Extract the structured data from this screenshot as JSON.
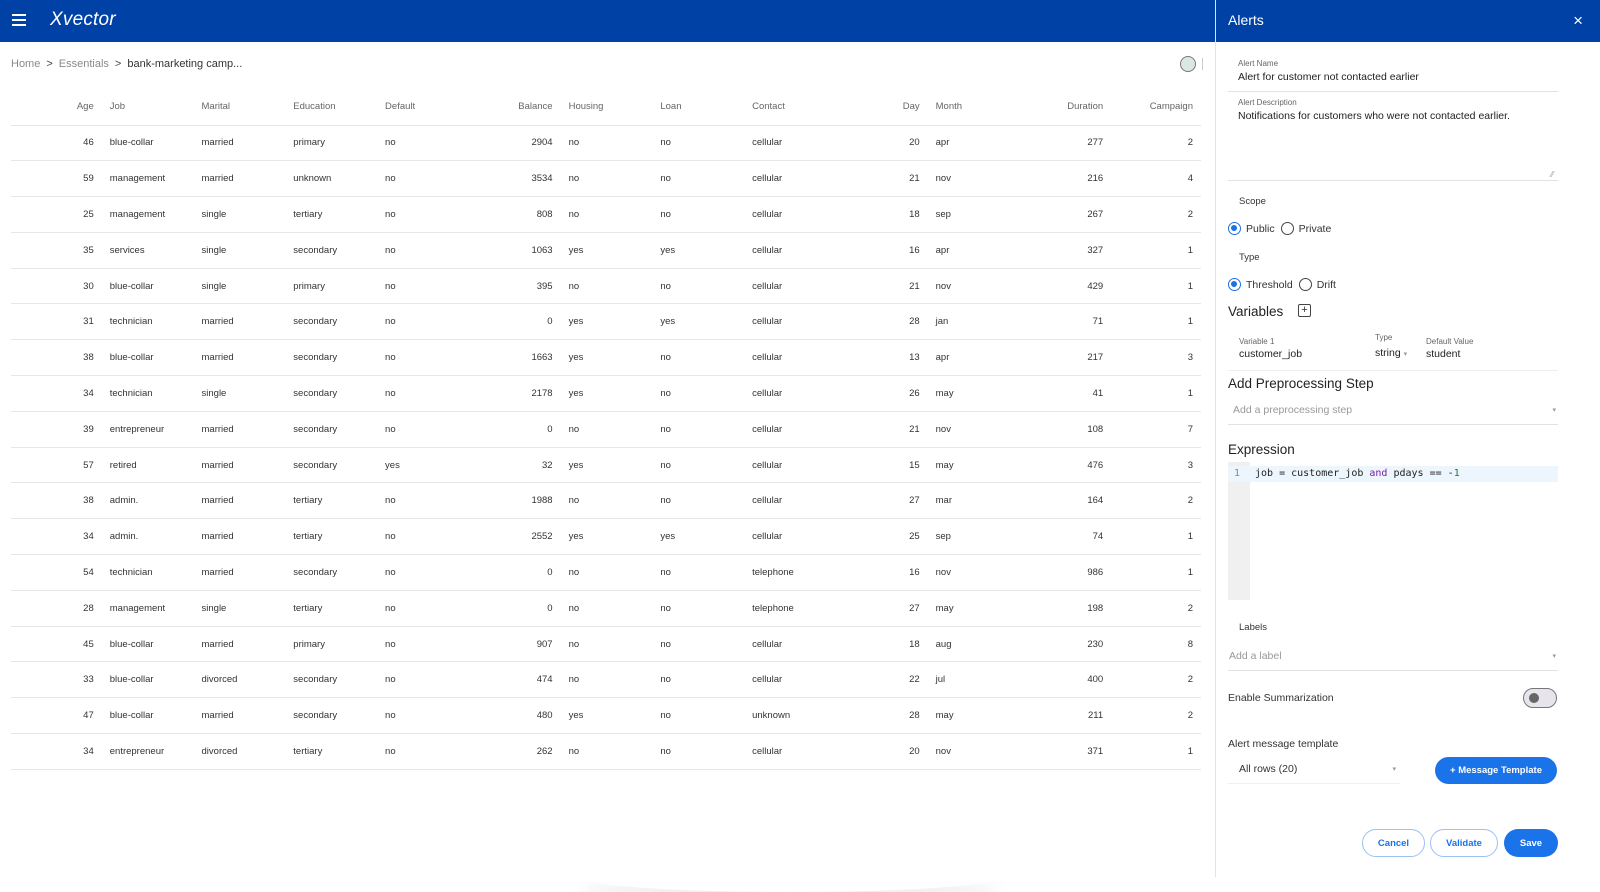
{
  "app": {
    "title": "Xvector"
  },
  "breadcrumb": {
    "items": [
      "Home",
      "Essentials",
      "bank-marketing camp..."
    ],
    "separator": ">"
  },
  "table": {
    "columns": [
      "Age",
      "Job",
      "Marital",
      "Education",
      "Default",
      "Balance",
      "Housing",
      "Loan",
      "Contact",
      "Day",
      "Month",
      "Duration",
      "Campaign"
    ],
    "rows": [
      [
        "46",
        "blue-collar",
        "married",
        "primary",
        "no",
        "2904",
        "no",
        "no",
        "cellular",
        "20",
        "apr",
        "277",
        "2"
      ],
      [
        "59",
        "management",
        "married",
        "unknown",
        "no",
        "3534",
        "no",
        "no",
        "cellular",
        "21",
        "nov",
        "216",
        "4"
      ],
      [
        "25",
        "management",
        "single",
        "tertiary",
        "no",
        "808",
        "no",
        "no",
        "cellular",
        "18",
        "sep",
        "267",
        "2"
      ],
      [
        "35",
        "services",
        "single",
        "secondary",
        "no",
        "1063",
        "yes",
        "yes",
        "cellular",
        "16",
        "apr",
        "327",
        "1"
      ],
      [
        "30",
        "blue-collar",
        "single",
        "primary",
        "no",
        "395",
        "no",
        "no",
        "cellular",
        "21",
        "nov",
        "429",
        "1"
      ],
      [
        "31",
        "technician",
        "married",
        "secondary",
        "no",
        "0",
        "yes",
        "yes",
        "cellular",
        "28",
        "jan",
        "71",
        "1"
      ],
      [
        "38",
        "blue-collar",
        "married",
        "secondary",
        "no",
        "1663",
        "yes",
        "no",
        "cellular",
        "13",
        "apr",
        "217",
        "3"
      ],
      [
        "34",
        "technician",
        "single",
        "secondary",
        "no",
        "2178",
        "yes",
        "no",
        "cellular",
        "26",
        "may",
        "41",
        "1"
      ],
      [
        "39",
        "entrepreneur",
        "married",
        "secondary",
        "no",
        "0",
        "no",
        "no",
        "cellular",
        "21",
        "nov",
        "108",
        "7"
      ],
      [
        "57",
        "retired",
        "married",
        "secondary",
        "yes",
        "32",
        "yes",
        "no",
        "cellular",
        "15",
        "may",
        "476",
        "3"
      ],
      [
        "38",
        "admin.",
        "married",
        "tertiary",
        "no",
        "1988",
        "no",
        "no",
        "cellular",
        "27",
        "mar",
        "164",
        "2"
      ],
      [
        "34",
        "admin.",
        "married",
        "tertiary",
        "no",
        "2552",
        "yes",
        "yes",
        "cellular",
        "25",
        "sep",
        "74",
        "1"
      ],
      [
        "54",
        "technician",
        "married",
        "secondary",
        "no",
        "0",
        "no",
        "no",
        "telephone",
        "16",
        "nov",
        "986",
        "1"
      ],
      [
        "28",
        "management",
        "single",
        "tertiary",
        "no",
        "0",
        "no",
        "no",
        "telephone",
        "27",
        "may",
        "198",
        "2"
      ],
      [
        "45",
        "blue-collar",
        "married",
        "primary",
        "no",
        "907",
        "no",
        "no",
        "cellular",
        "18",
        "aug",
        "230",
        "8"
      ],
      [
        "33",
        "blue-collar",
        "divorced",
        "secondary",
        "no",
        "474",
        "no",
        "no",
        "cellular",
        "22",
        "jul",
        "400",
        "2"
      ],
      [
        "47",
        "blue-collar",
        "married",
        "secondary",
        "no",
        "480",
        "yes",
        "no",
        "unknown",
        "28",
        "may",
        "211",
        "2"
      ],
      [
        "34",
        "entrepreneur",
        "divorced",
        "tertiary",
        "no",
        "262",
        "no",
        "no",
        "cellular",
        "20",
        "nov",
        "371",
        "1"
      ]
    ]
  },
  "panel": {
    "title": "Alerts",
    "close_icon": "×",
    "alert_name": {
      "label": "Alert Name",
      "value": "Alert for customer not contacted earlier"
    },
    "alert_description": {
      "label": "Alert Description",
      "value": "Notifications for customers who were not contacted earlier."
    },
    "scope": {
      "label": "Scope",
      "options": [
        "Public",
        "Private"
      ],
      "selected": "Public"
    },
    "type": {
      "label": "Type",
      "options": [
        "Threshold",
        "Drift"
      ],
      "selected": "Threshold"
    },
    "variables": {
      "title": "Variables",
      "add_icon": "+",
      "items": [
        {
          "name_label": "Variable 1",
          "name": "customer_job",
          "type_label": "Type",
          "type": "string",
          "default_label": "Default Value",
          "default": "student"
        }
      ]
    },
    "preprocessing": {
      "title": "Add Preprocessing Step",
      "placeholder": "Add a preprocessing step"
    },
    "expression": {
      "title": "Expression",
      "line_number": "1",
      "code_parts": {
        "a": "job = customer_job ",
        "kw": "and",
        "b": " pdays == -",
        "num": "1"
      }
    },
    "labels": {
      "label": "Labels",
      "placeholder": "Add a label"
    },
    "summarization": {
      "label": "Enable Summarization",
      "enabled": false
    },
    "message_template": {
      "label": "Alert message template",
      "selected": "All rows (20)",
      "add_button": "+ Message Template"
    },
    "buttons": {
      "cancel": "Cancel",
      "validate": "Validate",
      "save": "Save"
    },
    "dropdown_arrow": "▾"
  },
  "colors": {
    "header": "#0041a6",
    "accent": "#1a73e8"
  }
}
